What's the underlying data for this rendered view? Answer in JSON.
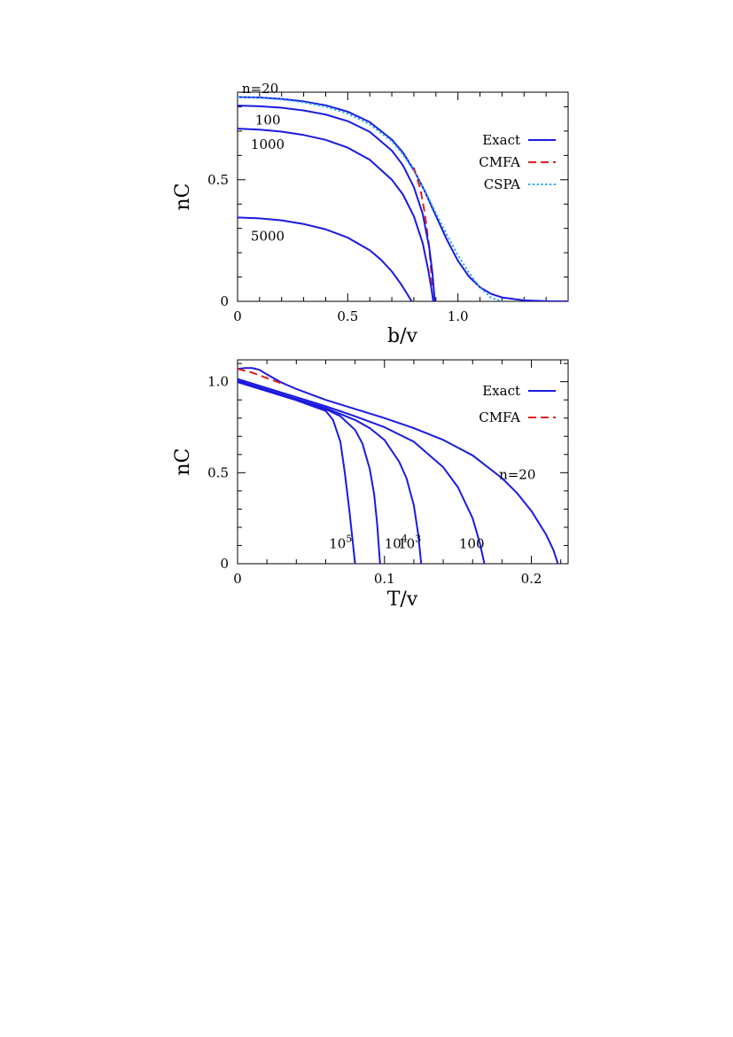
{
  "chart_data": [
    {
      "type": "line",
      "xlabel": "b/v",
      "ylabel": "nC",
      "xlim": [
        0,
        1.5
      ],
      "ylim": [
        0,
        0.86
      ],
      "xticks": [
        {
          "v": 0,
          "label": "0"
        },
        {
          "v": 0.5,
          "label": "0.5"
        },
        {
          "v": 1.0,
          "label": "1.0"
        }
      ],
      "yticks": [
        {
          "v": 0,
          "label": "0"
        },
        {
          "v": 0.5,
          "label": "0.5"
        }
      ],
      "minor_xticks": [
        0.1,
        0.2,
        0.3,
        0.4,
        0.6,
        0.7,
        0.8,
        0.9,
        1.1,
        1.2,
        1.3,
        1.4
      ],
      "minor_yticks": [
        0.1,
        0.2,
        0.3,
        0.4,
        0.6,
        0.7,
        0.8
      ],
      "grid": false,
      "legend_position": "top-right",
      "legend": [
        {
          "label": "Exact",
          "color": "#1a1adf",
          "dash": "solid"
        },
        {
          "label": "CMFA",
          "color": "#e02020",
          "dash": "dashed"
        },
        {
          "label": "CSPA",
          "color": "#20a8f0",
          "dash": "dotted"
        }
      ],
      "series": [
        {
          "name": "Exact",
          "label": "n=20",
          "color": "#1a1adf",
          "dash": "solid",
          "x": [
            0,
            0.1,
            0.2,
            0.3,
            0.4,
            0.5,
            0.6,
            0.7,
            0.75,
            0.8,
            0.85,
            0.9,
            0.95,
            1.0,
            1.05,
            1.1,
            1.15,
            1.2,
            1.3,
            1.4,
            1.5
          ],
          "y": [
            0.84,
            0.838,
            0.832,
            0.822,
            0.806,
            0.78,
            0.737,
            0.665,
            0.612,
            0.54,
            0.452,
            0.352,
            0.253,
            0.167,
            0.102,
            0.058,
            0.031,
            0.016,
            0.004,
            0.001,
            0.0
          ]
        },
        {
          "name": "CMFA",
          "color": "#e02020",
          "dash": "dashed",
          "x": [
            0.8,
            0.83,
            0.85,
            0.87,
            0.885
          ],
          "y": [
            0.55,
            0.46,
            0.36,
            0.22,
            0.05
          ]
        },
        {
          "name": "CSPA",
          "color": "#20a8f0",
          "dash": "dotted",
          "x": [
            0,
            0.1,
            0.2,
            0.3,
            0.4,
            0.5,
            0.6,
            0.7,
            0.75,
            0.8,
            0.85,
            0.9,
            0.95,
            1.0,
            1.05,
            1.1,
            1.15,
            1.2
          ],
          "y": [
            0.84,
            0.837,
            0.83,
            0.818,
            0.8,
            0.772,
            0.728,
            0.658,
            0.605,
            0.537,
            0.455,
            0.363,
            0.273,
            0.19,
            0.118,
            0.057,
            0.015,
            0.0
          ]
        },
        {
          "name": "Exact",
          "label": "100",
          "color": "#1a1adf",
          "dash": "solid",
          "x": [
            0,
            0.1,
            0.2,
            0.3,
            0.4,
            0.5,
            0.6,
            0.7,
            0.75,
            0.8,
            0.84,
            0.87,
            0.885,
            0.895
          ],
          "y": [
            0.805,
            0.802,
            0.796,
            0.785,
            0.768,
            0.741,
            0.697,
            0.62,
            0.56,
            0.47,
            0.36,
            0.22,
            0.11,
            0.0
          ]
        },
        {
          "name": "Exact",
          "label": "1000",
          "color": "#1a1adf",
          "dash": "solid",
          "x": [
            0,
            0.1,
            0.2,
            0.3,
            0.4,
            0.5,
            0.6,
            0.7,
            0.75,
            0.8,
            0.84,
            0.865,
            0.88,
            0.888
          ],
          "y": [
            0.71,
            0.706,
            0.698,
            0.684,
            0.664,
            0.632,
            0.582,
            0.5,
            0.44,
            0.35,
            0.24,
            0.13,
            0.05,
            0.0
          ]
        },
        {
          "name": "Exact",
          "label": "5000",
          "color": "#1a1adf",
          "dash": "solid",
          "x": [
            0,
            0.1,
            0.2,
            0.3,
            0.4,
            0.5,
            0.6,
            0.65,
            0.7,
            0.74,
            0.77,
            0.79
          ],
          "y": [
            0.345,
            0.341,
            0.333,
            0.318,
            0.296,
            0.262,
            0.21,
            0.172,
            0.123,
            0.073,
            0.03,
            0.0
          ]
        }
      ],
      "annotations": [
        {
          "text": "n=20",
          "x": 0.02,
          "y": 0.875
        },
        {
          "text": "100",
          "x": 0.08,
          "y": 0.745
        },
        {
          "text": "1000",
          "x": 0.06,
          "y": 0.645
        },
        {
          "text": "5000",
          "x": 0.06,
          "y": 0.268
        }
      ]
    },
    {
      "type": "line",
      "xlabel": "T/v",
      "ylabel": "nC",
      "xlim": [
        0,
        0.225
      ],
      "ylim": [
        0,
        1.12
      ],
      "xticks": [
        {
          "v": 0,
          "label": "0"
        },
        {
          "v": 0.1,
          "label": "0.1"
        },
        {
          "v": 0.2,
          "label": "0.2"
        }
      ],
      "yticks": [
        {
          "v": 0,
          "label": "0"
        },
        {
          "v": 0.5,
          "label": "0.5"
        },
        {
          "v": 1.0,
          "label": "1.0"
        }
      ],
      "minor_xticks": [
        0.02,
        0.04,
        0.06,
        0.08,
        0.12,
        0.14,
        0.16,
        0.18,
        0.22
      ],
      "minor_yticks": [
        0.1,
        0.2,
        0.3,
        0.4,
        0.6,
        0.7,
        0.8,
        0.9,
        1.1
      ],
      "grid": false,
      "legend_position": "top-right",
      "legend": [
        {
          "label": "Exact",
          "color": "#1a1adf",
          "dash": "solid"
        },
        {
          "label": "CMFA",
          "color": "#e02020",
          "dash": "dashed"
        }
      ],
      "series": [
        {
          "name": "Exact",
          "label": "n=20",
          "color": "#1a1adf",
          "dash": "solid",
          "x": [
            0,
            0.005,
            0.01,
            0.015,
            0.02,
            0.03,
            0.04,
            0.06,
            0.08,
            0.1,
            0.12,
            0.14,
            0.16,
            0.18,
            0.19,
            0.2,
            0.21,
            0.215,
            0.218
          ],
          "y": [
            1.07,
            1.075,
            1.075,
            1.065,
            1.04,
            0.995,
            0.96,
            0.9,
            0.85,
            0.8,
            0.745,
            0.68,
            0.595,
            0.47,
            0.39,
            0.29,
            0.16,
            0.075,
            0.0
          ]
        },
        {
          "name": "CMFA",
          "color": "#e02020",
          "dash": "dashed",
          "x": [
            0,
            0.01,
            0.02,
            0.03
          ],
          "y": [
            1.07,
            1.05,
            1.02,
            0.99
          ]
        },
        {
          "name": "Exact",
          "label": "100",
          "color": "#1a1adf",
          "dash": "solid",
          "x": [
            0,
            0.02,
            0.04,
            0.06,
            0.08,
            0.1,
            0.12,
            0.14,
            0.15,
            0.16,
            0.165,
            0.168
          ],
          "y": [
            1.015,
            0.965,
            0.915,
            0.865,
            0.81,
            0.75,
            0.67,
            0.53,
            0.42,
            0.25,
            0.11,
            0.0
          ]
        },
        {
          "name": "Exact",
          "label": "10^3",
          "color": "#1a1adf",
          "dash": "solid",
          "x": [
            0,
            0.02,
            0.04,
            0.06,
            0.08,
            0.09,
            0.1,
            0.11,
            0.115,
            0.12,
            0.123,
            0.125
          ],
          "y": [
            1.005,
            0.955,
            0.905,
            0.855,
            0.79,
            0.745,
            0.68,
            0.56,
            0.47,
            0.32,
            0.16,
            0.0
          ]
        },
        {
          "name": "Exact",
          "label": "10^4",
          "color": "#1a1adf",
          "dash": "solid",
          "x": [
            0,
            0.02,
            0.04,
            0.06,
            0.07,
            0.08,
            0.085,
            0.09,
            0.093,
            0.095,
            0.097
          ],
          "y": [
            1.0,
            0.95,
            0.9,
            0.85,
            0.81,
            0.735,
            0.66,
            0.52,
            0.38,
            0.22,
            0.0
          ]
        },
        {
          "name": "Exact",
          "label": "10^5",
          "color": "#1a1adf",
          "dash": "solid",
          "x": [
            0,
            0.02,
            0.04,
            0.06,
            0.065,
            0.07,
            0.073,
            0.076,
            0.078,
            0.08
          ],
          "y": [
            0.998,
            0.948,
            0.898,
            0.84,
            0.79,
            0.67,
            0.5,
            0.3,
            0.15,
            0.0
          ]
        }
      ],
      "annotations": [
        {
          "text": "n=20",
          "x": 0.178,
          "y": 0.49
        },
        {
          "text": "100",
          "x": 0.168,
          "y": 0.11,
          "anchor": "end"
        },
        {
          "text": "10",
          "sup": "3",
          "x": 0.125,
          "y": 0.11,
          "anchor": "end"
        },
        {
          "text": "10",
          "sup": "4",
          "x": 0.1,
          "y": 0.11
        },
        {
          "text": "10",
          "sup": "5",
          "x": 0.078,
          "y": 0.11,
          "anchor": "end"
        }
      ]
    }
  ]
}
